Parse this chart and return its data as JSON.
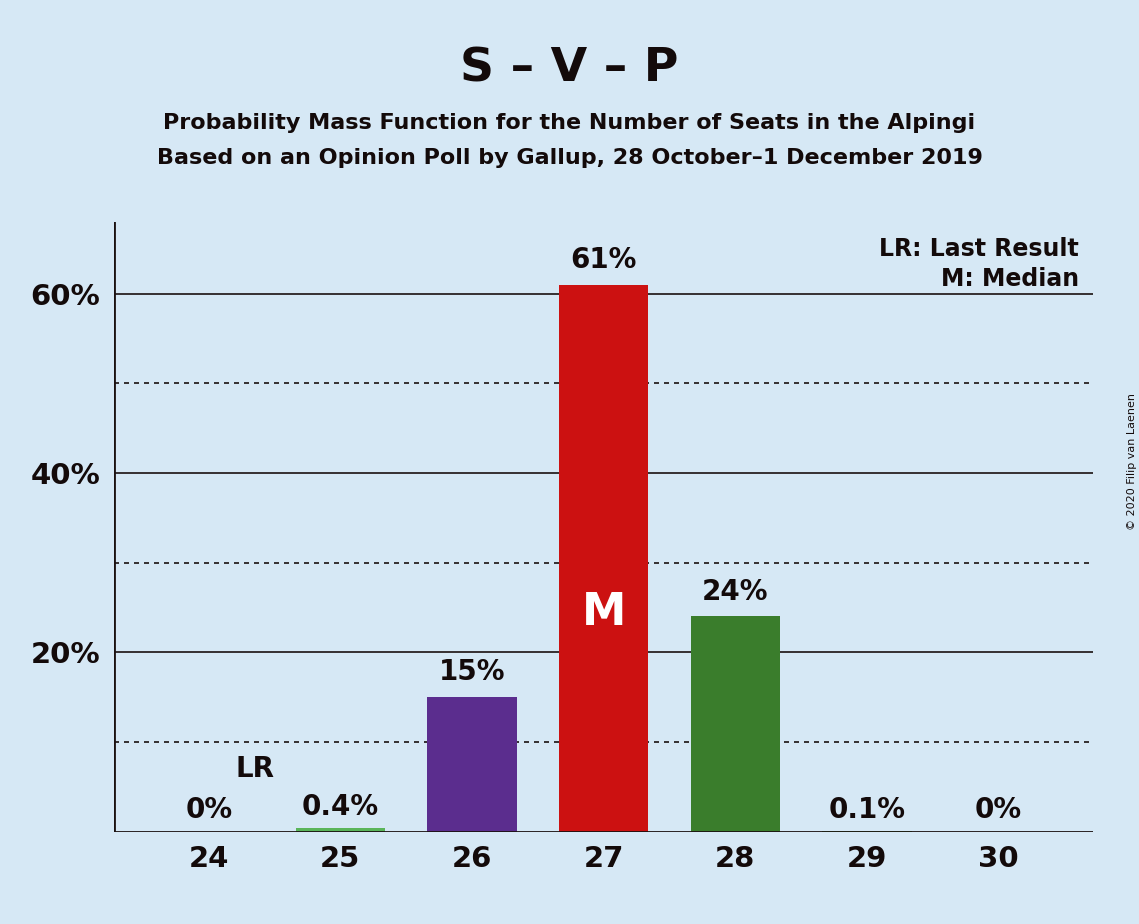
{
  "title": "S – V – P",
  "subtitle1": "Probability Mass Function for the Number of Seats in the Alpingi",
  "subtitle2": "Based on an Opinion Poll by Gallup, 28 October–1 December 2019",
  "copyright": "© 2020 Filip van Laenen",
  "categories": [
    24,
    25,
    26,
    27,
    28,
    29,
    30
  ],
  "values": [
    0.0,
    0.4,
    15.0,
    61.0,
    24.0,
    0.1,
    0.0
  ],
  "bar_colors": [
    "#4caf50",
    "#5ab55a",
    "#5b2d8e",
    "#cc1111",
    "#3a7d2c",
    "#4caf50",
    "#4caf50"
  ],
  "last_result_value": 10.0,
  "median_seat": 27,
  "ylim": [
    0,
    68
  ],
  "yticks": [
    0,
    20,
    40,
    60
  ],
  "ytick_dotted": [
    10,
    30,
    50
  ],
  "background_color": "#d6e8f5",
  "bar_width": 0.68,
  "legend_text1": "LR: Last Result",
  "legend_text2": "M: Median",
  "value_labels": [
    "0%",
    "0.4%",
    "15%",
    "61%",
    "24%",
    "0.1%",
    "0%"
  ],
  "lr_label": "LR",
  "median_label": "M",
  "title_fontsize": 34,
  "subtitle_fontsize": 16,
  "tick_fontsize": 21,
  "label_fontsize": 20,
  "legend_fontsize": 17
}
